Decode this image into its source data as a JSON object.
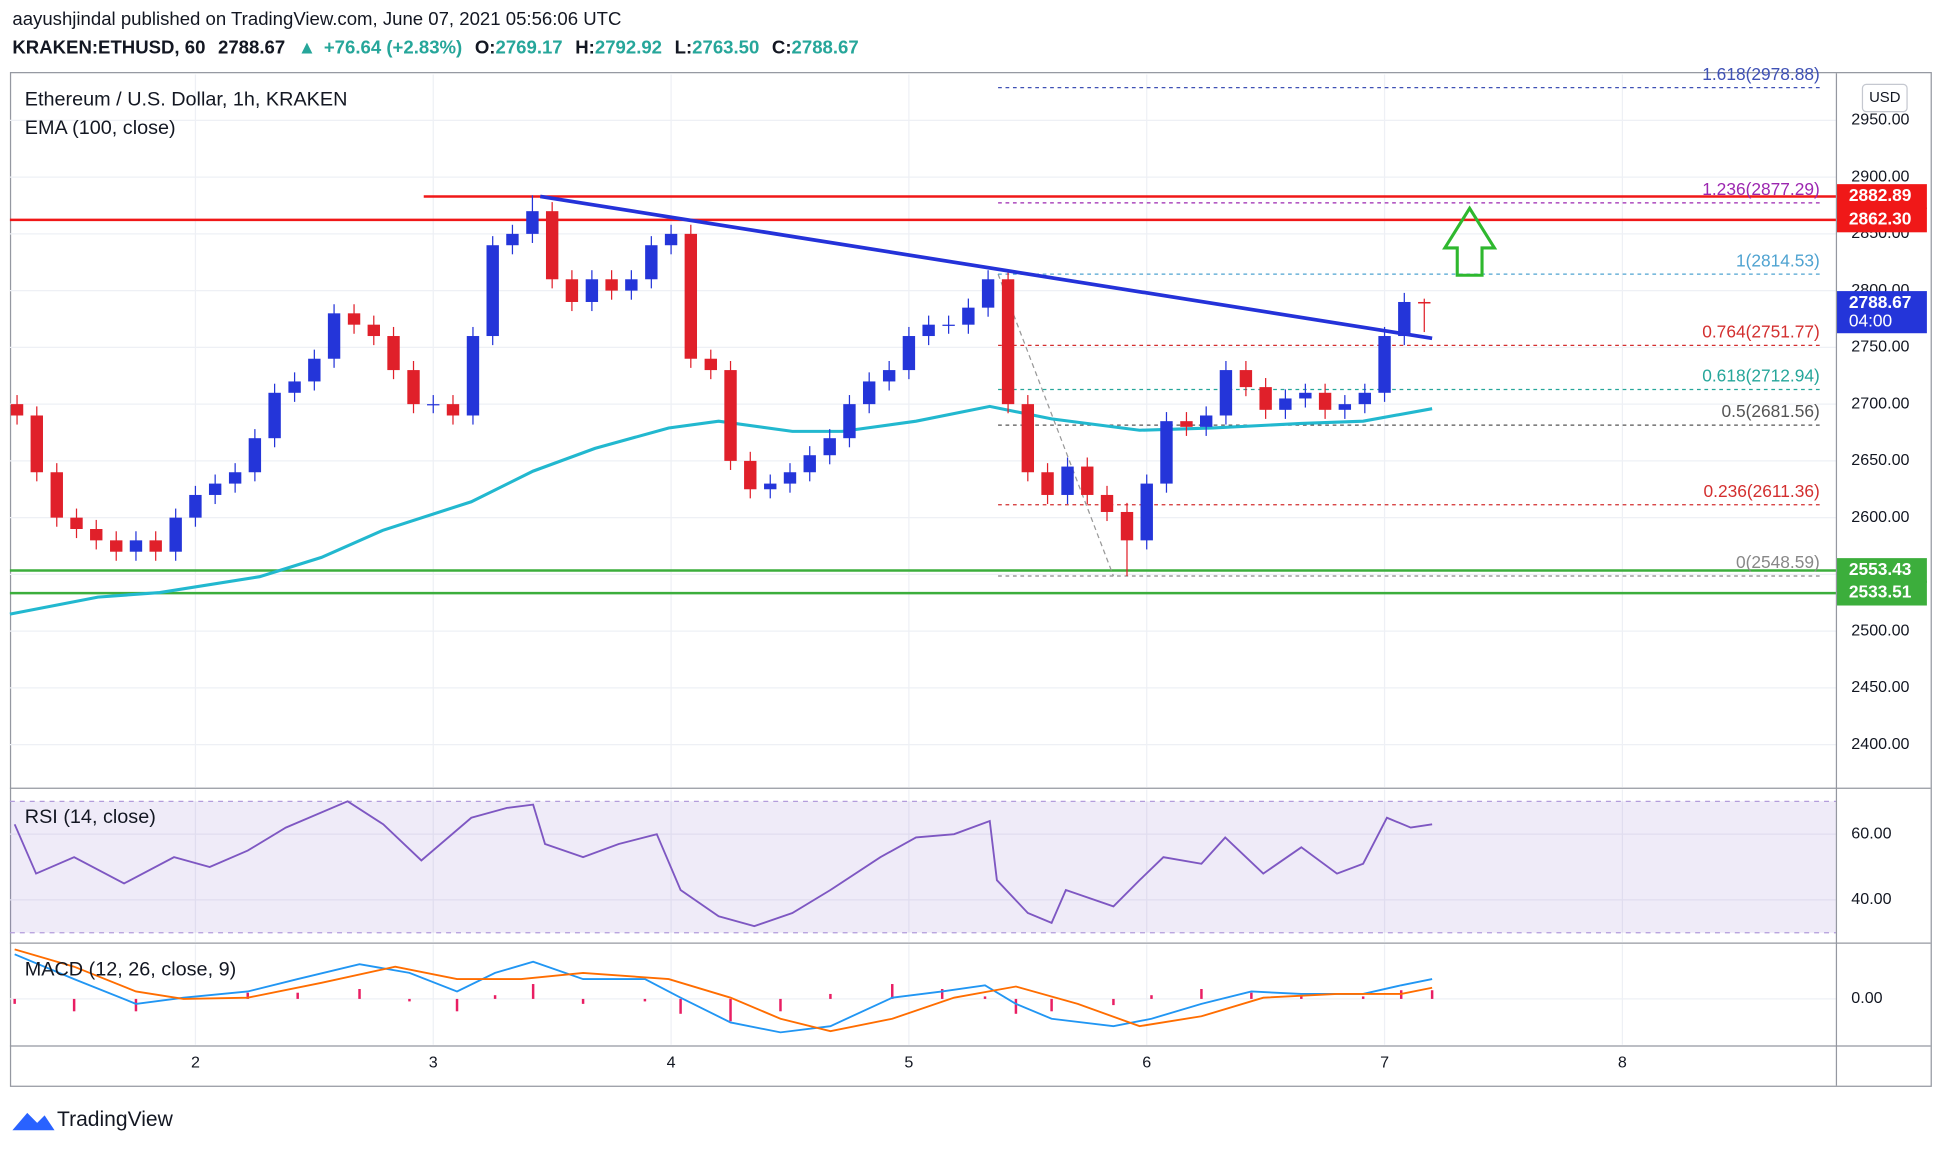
{
  "header": {
    "publisher": "aayushjindal published on TradingView.com, June 07, 2021 05:56:06 UTC",
    "symbol": "KRAKEN:ETHUSD, 60",
    "last": "2788.67",
    "change": "+76.64 (+2.83%)",
    "ohlc": [
      {
        "k": "O:",
        "v": "2769.17"
      },
      {
        "k": "H:",
        "v": "2792.92"
      },
      {
        "k": "L:",
        "v": "2763.50"
      },
      {
        "k": "C:",
        "v": "2788.67"
      }
    ],
    "currency": "USD",
    "logo": "TradingView"
  },
  "chart_data": [
    {
      "type": "candlestick",
      "title": "Ethereum / U.S. Dollar, 1h, KRAKEN",
      "up_color": "#2435d9",
      "down_color": "#e0202a",
      "x": [
        1.25,
        1.333,
        1.417,
        1.5,
        1.583,
        1.667,
        1.75,
        1.833,
        1.917,
        2.0,
        2.083,
        2.167,
        2.25,
        2.333,
        2.417,
        2.5,
        2.583,
        2.667,
        2.75,
        2.833,
        2.917,
        3.0,
        3.083,
        3.167,
        3.25,
        3.333,
        3.417,
        3.5,
        3.583,
        3.667,
        3.75,
        3.833,
        3.917,
        4.0,
        4.083,
        4.167,
        4.25,
        4.333,
        4.417,
        4.5,
        4.583,
        4.667,
        4.75,
        4.833,
        4.917,
        5.0,
        5.083,
        5.167,
        5.25,
        5.333,
        5.417,
        5.5,
        5.583,
        5.667,
        5.75,
        5.833,
        5.917,
        6.0,
        6.083,
        6.167,
        6.25,
        6.333,
        6.417,
        6.5,
        6.583,
        6.667,
        6.75,
        6.833,
        6.917,
        7.0,
        7.083,
        7.167
      ],
      "open": [
        2700,
        2690,
        2640,
        2600,
        2590,
        2580,
        2570,
        2580,
        2570,
        2600,
        2620,
        2630,
        2640,
        2670,
        2710,
        2720,
        2740,
        2780,
        2770,
        2760,
        2730,
        2700,
        2700,
        2690,
        2760,
        2840,
        2850,
        2870,
        2810,
        2790,
        2810,
        2800,
        2810,
        2840,
        2850,
        2740,
        2730,
        2650,
        2625,
        2630,
        2640,
        2655,
        2670,
        2700,
        2720,
        2730,
        2760,
        2770,
        2770,
        2785,
        2810,
        2700,
        2640,
        2620,
        2645,
        2620,
        2605,
        2580,
        2630,
        2685,
        2680,
        2690,
        2730,
        2715,
        2695,
        2705,
        2710,
        2695,
        2700,
        2710,
        2760,
        2790
      ],
      "high": [
        2708,
        2698,
        2648,
        2608,
        2598,
        2588,
        2588,
        2588,
        2608,
        2628,
        2638,
        2648,
        2678,
        2718,
        2728,
        2748,
        2788,
        2788,
        2778,
        2768,
        2738,
        2708,
        2708,
        2768,
        2848,
        2858,
        2884,
        2878,
        2818,
        2818,
        2818,
        2818,
        2848,
        2858,
        2858,
        2748,
        2738,
        2658,
        2638,
        2648,
        2663,
        2678,
        2708,
        2728,
        2738,
        2768,
        2778,
        2778,
        2793,
        2818,
        2818,
        2708,
        2648,
        2653,
        2653,
        2628,
        2613,
        2638,
        2693,
        2693,
        2698,
        2738,
        2738,
        2723,
        2713,
        2718,
        2718,
        2708,
        2718,
        2768,
        2798,
        2792.92
      ],
      "low": [
        2682,
        2632,
        2592,
        2582,
        2572,
        2562,
        2562,
        2562,
        2562,
        2592,
        2612,
        2622,
        2632,
        2662,
        2702,
        2712,
        2732,
        2762,
        2752,
        2722,
        2692,
        2692,
        2682,
        2682,
        2752,
        2832,
        2842,
        2802,
        2782,
        2782,
        2792,
        2792,
        2802,
        2832,
        2732,
        2722,
        2642,
        2617,
        2617,
        2622,
        2632,
        2647,
        2662,
        2692,
        2712,
        2722,
        2752,
        2762,
        2762,
        2777,
        2692,
        2632,
        2612,
        2612,
        2612,
        2597,
        2548.59,
        2572,
        2622,
        2672,
        2672,
        2682,
        2707,
        2687,
        2687,
        2697,
        2687,
        2687,
        2692,
        2702,
        2752,
        2763.5
      ],
      "close": [
        2690,
        2640,
        2600,
        2590,
        2580,
        2570,
        2580,
        2570,
        2600,
        2620,
        2630,
        2640,
        2670,
        2710,
        2720,
        2740,
        2780,
        2770,
        2760,
        2730,
        2700,
        2700,
        2690,
        2760,
        2840,
        2850,
        2870,
        2810,
        2790,
        2810,
        2800,
        2810,
        2840,
        2850,
        2740,
        2730,
        2650,
        2625,
        2630,
        2640,
        2655,
        2670,
        2700,
        2720,
        2730,
        2760,
        2770,
        2770,
        2785,
        2810,
        2700,
        2640,
        2620,
        2645,
        2620,
        2605,
        2580,
        2630,
        2685,
        2680,
        2690,
        2730,
        2715,
        2695,
        2705,
        2710,
        2695,
        2700,
        2710,
        2760,
        2790,
        2788.67
      ],
      "ema": {
        "name": "EMA (100, close)",
        "color": "#22b8cf",
        "x": [
          1.22,
          1.59,
          1.85,
          2.27,
          2.53,
          2.79,
          3.16,
          3.42,
          3.68,
          3.99,
          4.2,
          4.51,
          4.72,
          5.03,
          5.34,
          5.6,
          5.97,
          6.28,
          6.65,
          6.91,
          7.2
        ],
        "values": [
          2515,
          2530,
          2534,
          2548,
          2565,
          2589,
          2614,
          2641,
          2661,
          2679,
          2685,
          2676,
          2676,
          2685,
          2698,
          2687,
          2677,
          2679,
          2683,
          2685,
          2696
        ]
      },
      "levels": [
        {
          "value": 2882.89,
          "color": "#f01818",
          "start": 2.96
        },
        {
          "value": 2862.3,
          "color": "#f01818"
        },
        {
          "value": 2553.43,
          "color": "#3cae3c"
        },
        {
          "value": 2533.51,
          "color": "#3cae3c"
        }
      ],
      "trendline": {
        "x": [
          3.45,
          7.2
        ],
        "y": [
          2883,
          2758
        ],
        "color": "#2432d9"
      },
      "fib": {
        "start": 5.375,
        "end": 8.83,
        "anchor_x": [
          5.375,
          5.86
        ],
        "anchor_y": [
          2814.53,
          2548.59
        ],
        "levels": [
          {
            "label": "1.618(2978.88)",
            "value": 2978.88,
            "color": "#3f51b5"
          },
          {
            "label": "1.236(2877.29)",
            "value": 2877.29,
            "color": "#9c27b0"
          },
          {
            "label": "1(2814.53)",
            "value": 2814.53,
            "color": "#4fa3d1"
          },
          {
            "label": "0.764(2751.77)",
            "value": 2751.77,
            "color": "#d32f2f"
          },
          {
            "label": "0.618(2712.94)",
            "value": 2712.94,
            "color": "#26a69a"
          },
          {
            "label": "0.5(2681.56)",
            "value": 2681.56,
            "color": "#555555"
          },
          {
            "label": "0.236(2611.36)",
            "value": 2611.36,
            "color": "#d32f2f"
          },
          {
            "label": "0(2548.59)",
            "value": 2548.59,
            "color": "#888888"
          }
        ]
      },
      "price_labels": [
        {
          "value": 2882.89,
          "label": "2882.89",
          "color": "#f01818"
        },
        {
          "value": 2862.3,
          "label": "2862.30",
          "color": "#f01818"
        },
        {
          "value": 2788.67,
          "label": "2788.67",
          "color": "#2435d9",
          "countdown": "04:00"
        },
        {
          "value": 2553.43,
          "label": "2553.43",
          "color": "#3cae3c"
        },
        {
          "value": 2533.51,
          "label": "2533.51",
          "color": "#3cae3c"
        }
      ],
      "xlim": [
        1.22,
        8.9
      ],
      "xticks": [
        2,
        3,
        4,
        5,
        6,
        7,
        8
      ],
      "ylim": [
        2362.7,
        2990.4
      ],
      "yticks": [
        {
          "value": 2400,
          "label": "2400.00"
        },
        {
          "value": 2450,
          "label": "2450.00"
        },
        {
          "value": 2500,
          "label": "2500.00"
        },
        {
          "value": 2550,
          "label": "2550.00"
        },
        {
          "value": 2600,
          "label": "2600.00"
        },
        {
          "value": 2650,
          "label": "2650.00"
        },
        {
          "value": 2700,
          "label": "2700.00"
        },
        {
          "value": 2750,
          "label": "2750.00"
        },
        {
          "value": 2800,
          "label": "2800.00"
        },
        {
          "value": 2850,
          "label": "2850.00"
        },
        {
          "value": 2900,
          "label": "2900.00"
        },
        {
          "value": 2950,
          "label": "2950.00"
        }
      ],
      "grid": true
    },
    {
      "type": "rsi",
      "title": "RSI (14, close)",
      "color": "#7e57c2",
      "band": [
        30,
        70
      ],
      "ylim": [
        27.2,
        73.6
      ],
      "yticks": [
        {
          "value": 40,
          "label": "40.00"
        },
        {
          "value": 60,
          "label": "60.00"
        }
      ],
      "x": [
        1.24,
        1.33,
        1.49,
        1.7,
        1.91,
        2.06,
        2.22,
        2.38,
        2.64,
        2.79,
        2.95,
        3.16,
        3.31,
        3.42,
        3.47,
        3.63,
        3.78,
        3.94,
        4.04,
        4.2,
        4.35,
        4.51,
        4.67,
        4.88,
        5.03,
        5.19,
        5.34,
        5.37,
        5.5,
        5.6,
        5.66,
        5.86,
        5.97,
        6.07,
        6.23,
        6.33,
        6.49,
        6.65,
        6.8,
        6.91,
        7.01,
        7.11,
        7.2
      ],
      "values": [
        63,
        48,
        53,
        45,
        53,
        50,
        55,
        62,
        70,
        63,
        52,
        65,
        68,
        69,
        57,
        53,
        57,
        60,
        43,
        35,
        32,
        36,
        43,
        53,
        59,
        60,
        64,
        46,
        36,
        33,
        43,
        38,
        46,
        53,
        51,
        59,
        48,
        56,
        48,
        51,
        65,
        62,
        63
      ]
    },
    {
      "type": "macd",
      "title": "MACD (12, 26, close, 9)",
      "ylim": [
        -37,
        44
      ],
      "yticks": [
        {
          "value": 0,
          "label": "0.00"
        }
      ],
      "x": [
        1.24,
        1.49,
        1.75,
        1.95,
        2.22,
        2.43,
        2.69,
        2.9,
        3.1,
        3.26,
        3.42,
        3.63,
        3.89,
        4.04,
        4.25,
        4.46,
        4.67,
        4.93,
        5.14,
        5.32,
        5.45,
        5.6,
        5.86,
        6.02,
        6.23,
        6.44,
        6.65,
        6.91,
        7.07,
        7.2
      ],
      "macd": {
        "color": "#2196f3",
        "values": [
          36,
          16,
          -4,
          1,
          6,
          16,
          28,
          21,
          6,
          21,
          30,
          16,
          16,
          1,
          -19,
          -27,
          -22,
          1,
          6,
          11,
          -4,
          -16,
          -22,
          -16,
          -4,
          6,
          4,
          4,
          11,
          16
        ]
      },
      "histogram": {
        "color": "#e91e63",
        "values": [
          -4,
          -10,
          -10,
          1,
          5,
          5,
          8,
          -2,
          -10,
          3,
          12,
          -4,
          -2,
          -12,
          -18,
          -10,
          4,
          12,
          8,
          2,
          -12,
          -10,
          -5,
          3,
          8,
          5,
          3,
          2,
          7,
          7
        ]
      },
      "signal": {
        "color": "#ff6d00",
        "x": [
          1.24,
          1.49,
          1.75,
          1.95,
          2.22,
          2.53,
          2.84,
          3.1,
          3.37,
          3.63,
          3.99,
          4.25,
          4.46,
          4.67,
          4.93,
          5.19,
          5.45,
          5.71,
          5.97,
          6.23,
          6.49,
          6.8,
          7.07,
          7.2
        ],
        "values": [
          40,
          26,
          6,
          0,
          1,
          13,
          26,
          16,
          16,
          21,
          16,
          1,
          -16,
          -26,
          -16,
          1,
          10,
          -4,
          -22,
          -14,
          1,
          4,
          4,
          9
        ]
      }
    }
  ]
}
